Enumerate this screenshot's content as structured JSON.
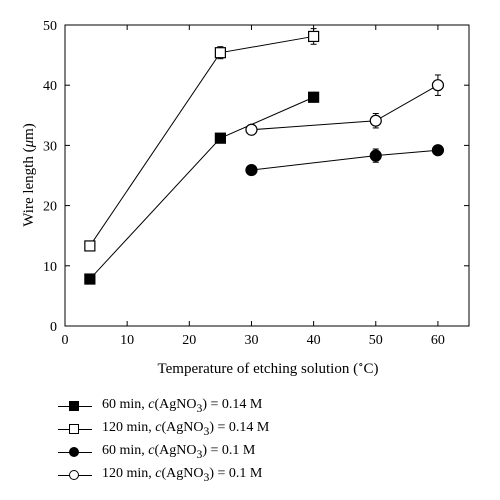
{
  "chart_data": {
    "type": "line",
    "title": "",
    "xlabel": "Temperature of etching solution (°C)",
    "ylabel": "Wire length (μm)",
    "xlim": [
      0,
      65
    ],
    "ylim": [
      0,
      50
    ],
    "xticks": [
      0,
      10,
      20,
      30,
      40,
      50,
      60
    ],
    "yticks": [
      0,
      10,
      20,
      30,
      40,
      50
    ],
    "grid": false,
    "legend_position": "below",
    "series": [
      {
        "name": "60 min, c(AgNO3) = 0.14 M",
        "marker": "square",
        "filled": true,
        "x": [
          4,
          25,
          40
        ],
        "y": [
          7.8,
          31.2,
          38.0
        ],
        "err": [
          0.4,
          0.5,
          0.8
        ]
      },
      {
        "name": "120 min, c(AgNO3) = 0.14 M",
        "marker": "square",
        "filled": false,
        "x": [
          4,
          25,
          40
        ],
        "y": [
          13.3,
          45.4,
          48.1
        ],
        "err": [
          0.6,
          1.0,
          1.3
        ]
      },
      {
        "name": "60 min, c(AgNO3) = 0.1 M",
        "marker": "circle",
        "filled": true,
        "x": [
          30,
          50,
          60
        ],
        "y": [
          25.9,
          28.3,
          29.2
        ],
        "err": [
          0.3,
          1.1,
          0.4
        ]
      },
      {
        "name": "120 min, c(AgNO3) = 0.1 M",
        "marker": "circle",
        "filled": false,
        "x": [
          30,
          50,
          60
        ],
        "y": [
          32.6,
          34.1,
          40.0
        ],
        "err": [
          0.8,
          1.2,
          1.7
        ]
      }
    ]
  }
}
